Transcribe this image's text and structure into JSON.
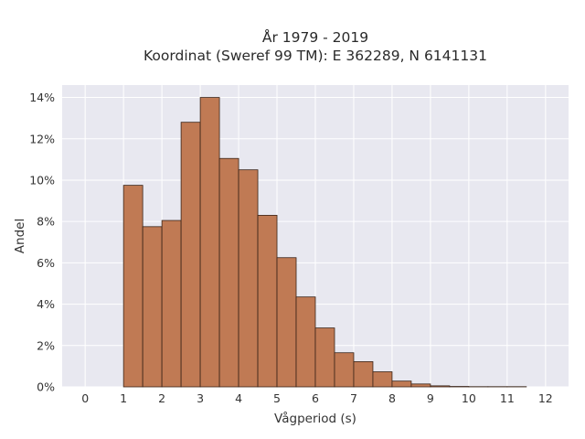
{
  "chart_data": {
    "type": "bar",
    "title_line1": "År 1979 - 2019",
    "title_line2": "Koordinat (Sweref 99 TM): E 362289, N 6141131",
    "xlabel": "Vågperiod (s)",
    "ylabel": "Andel",
    "xlim": [
      -0.6,
      12.6
    ],
    "ylim": [
      0,
      14.6
    ],
    "x_ticks": [
      0,
      1,
      2,
      3,
      4,
      5,
      6,
      7,
      8,
      9,
      10,
      11,
      12
    ],
    "y_ticks": [
      0,
      2,
      4,
      6,
      8,
      10,
      12,
      14
    ],
    "y_tick_suffix": "%",
    "bin_width": 0.5,
    "bins": [
      {
        "start": 0.0,
        "value": 0.0
      },
      {
        "start": 0.5,
        "value": 0.0
      },
      {
        "start": 1.0,
        "value": 9.75
      },
      {
        "start": 1.5,
        "value": 7.75
      },
      {
        "start": 2.0,
        "value": 8.05
      },
      {
        "start": 2.5,
        "value": 12.8
      },
      {
        "start": 3.0,
        "value": 14.0
      },
      {
        "start": 3.5,
        "value": 11.05
      },
      {
        "start": 4.0,
        "value": 10.5
      },
      {
        "start": 4.5,
        "value": 8.3
      },
      {
        "start": 5.0,
        "value": 6.25
      },
      {
        "start": 5.5,
        "value": 4.35
      },
      {
        "start": 6.0,
        "value": 2.85
      },
      {
        "start": 6.5,
        "value": 1.65
      },
      {
        "start": 7.0,
        "value": 1.22
      },
      {
        "start": 7.5,
        "value": 0.73
      },
      {
        "start": 8.0,
        "value": 0.28
      },
      {
        "start": 8.5,
        "value": 0.14
      },
      {
        "start": 9.0,
        "value": 0.05
      },
      {
        "start": 9.5,
        "value": 0.02
      },
      {
        "start": 10.0,
        "value": 0.01
      },
      {
        "start": 10.5,
        "value": 0.01
      },
      {
        "start": 11.0,
        "value": 0.01
      }
    ],
    "grid": true,
    "colors": {
      "bar_fill": "#c07a54",
      "bar_edge": "#3a2418",
      "plot_background": "#e8e8f0",
      "grid": "#ffffff"
    }
  }
}
